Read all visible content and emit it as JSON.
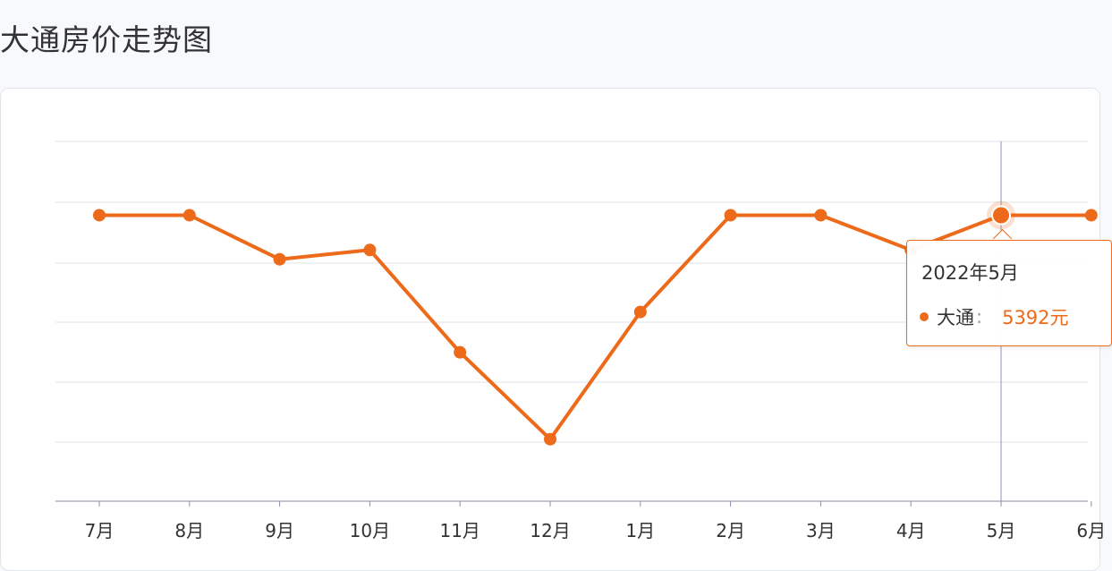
{
  "page": {
    "title": "大通房价走势图"
  },
  "tooltip": {
    "date": "2022年5月",
    "series_name": "大通",
    "separator": ":",
    "value": "5392元"
  },
  "colors": {
    "line": "#ec6a1a",
    "grid": "#dfe3ea",
    "axis_label": "#333333",
    "crosshair": "#8f93b8"
  },
  "chart_data": {
    "type": "line",
    "title": "大通房价走势图",
    "categories": [
      "7月",
      "8月",
      "9月",
      "10月",
      "11月",
      "12月",
      "1月",
      "2月",
      "3月",
      "4月",
      "5月",
      "6月"
    ],
    "series": [
      {
        "name": "大通",
        "values": [
          5392,
          5392,
          5250,
          5280,
          4950,
          4670,
          5080,
          5392,
          5392,
          5280,
          5392,
          5392
        ]
      }
    ],
    "ylim": [
      4470,
      5630
    ],
    "highlight": {
      "category": "5月",
      "value": 5392
    },
    "grid": true,
    "xlabel": "",
    "ylabel": ""
  }
}
